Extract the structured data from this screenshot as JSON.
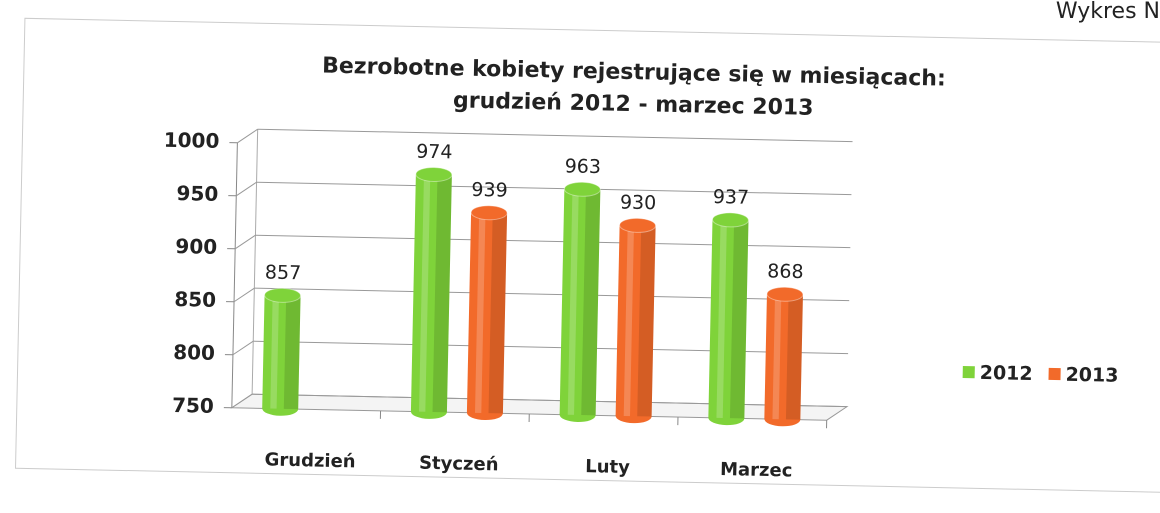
{
  "page_label": "Wykres N",
  "chart_data": {
    "type": "bar3d",
    "title": [
      "Bezrobotne kobiety rejestrujące się w miesiącach:",
      "grudzień  2012 - marzec 2013"
    ],
    "categories": [
      "Grudzień",
      "Styczeń",
      "Luty",
      "Marzec"
    ],
    "series": [
      {
        "name": "2012",
        "color": "#7fd33a",
        "values": [
          857,
          974,
          963,
          937
        ]
      },
      {
        "name": "2013",
        "color": "#f26a2a",
        "values": [
          null,
          939,
          930,
          868
        ]
      }
    ],
    "ylim": [
      750,
      1000
    ],
    "yticks": [
      750,
      800,
      850,
      900,
      950,
      1000
    ],
    "grid": true,
    "legend": "right"
  }
}
